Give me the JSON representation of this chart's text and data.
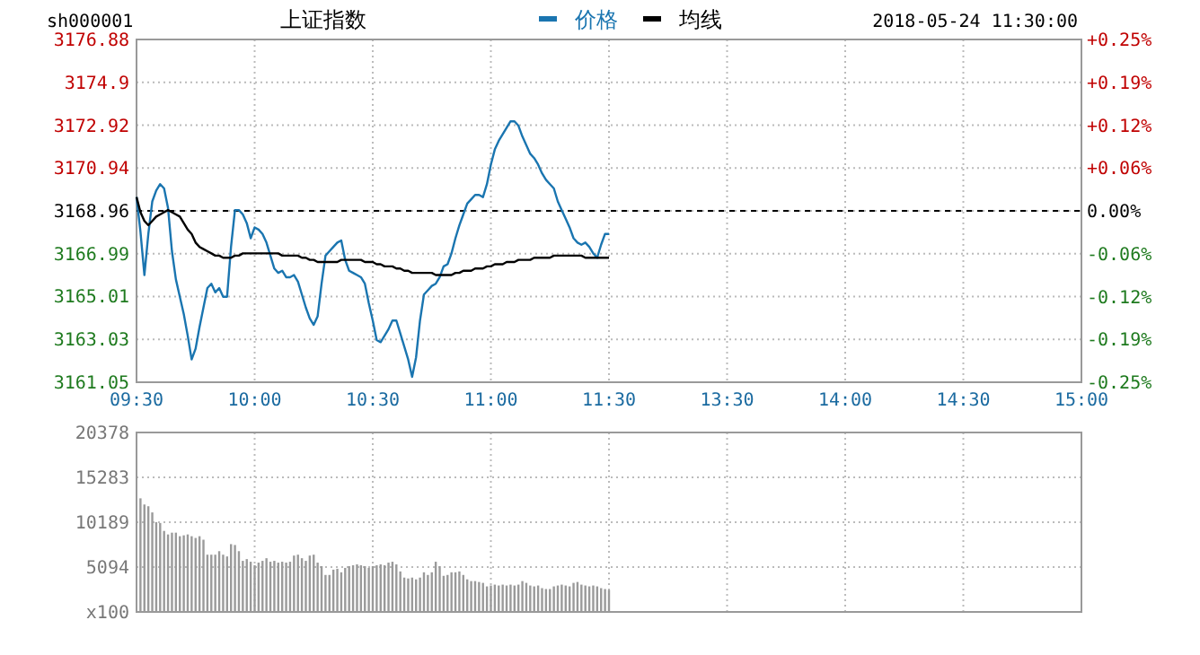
{
  "chart_data": [
    {
      "type": "line",
      "title": "上证指数",
      "subtitle": "sh000001",
      "annotations": [
        "2018-05-24 11:30:00"
      ],
      "legend": "top",
      "grid": true,
      "categories": [
        "09:30",
        null,
        null,
        null,
        null,
        null,
        null,
        null,
        null,
        null,
        null,
        null,
        null,
        null,
        null,
        null,
        null,
        null,
        null,
        null,
        null,
        null,
        null,
        null,
        null,
        null,
        null,
        null,
        null,
        null,
        "10:00",
        null,
        null,
        null,
        null,
        null,
        null,
        null,
        null,
        null,
        null,
        null,
        null,
        null,
        null,
        null,
        null,
        null,
        null,
        null,
        null,
        null,
        null,
        null,
        null,
        null,
        null,
        null,
        null,
        null,
        "10:30",
        null,
        null,
        null,
        null,
        null,
        null,
        null,
        null,
        null,
        null,
        null,
        null,
        null,
        null,
        null,
        null,
        null,
        null,
        null,
        null,
        null,
        null,
        null,
        null,
        null,
        null,
        null,
        null,
        null,
        "11:00",
        null,
        null,
        null,
        null,
        null,
        null,
        null,
        null,
        null,
        null,
        null,
        null,
        null,
        null,
        null,
        null,
        null,
        null,
        null,
        null,
        null,
        null,
        null,
        null,
        null,
        null,
        null,
        null,
        null,
        "11:30",
        null,
        null,
        null,
        null,
        null,
        null,
        null,
        null,
        null,
        null,
        null,
        null,
        null,
        null,
        null,
        null,
        null,
        null,
        null,
        null,
        null,
        null,
        null,
        null,
        null,
        null,
        null,
        null,
        null,
        "13:30",
        null,
        null,
        null,
        null,
        null,
        null,
        null,
        null,
        null,
        null,
        null,
        null,
        null,
        null,
        null,
        null,
        null,
        null,
        null,
        null,
        null,
        null,
        null,
        null,
        null,
        null,
        null,
        null,
        null,
        "14:00",
        null,
        null,
        null,
        null,
        null,
        null,
        null,
        null,
        null,
        null,
        null,
        null,
        null,
        null,
        null,
        null,
        null,
        null,
        null,
        null,
        null,
        null,
        null,
        null,
        null,
        null,
        null,
        null,
        null,
        "14:30",
        null,
        null,
        null,
        null,
        null,
        null,
        null,
        null,
        null,
        null,
        null,
        null,
        null,
        null,
        null,
        null,
        null,
        null,
        null,
        null,
        null,
        null,
        null,
        null,
        null,
        null,
        null,
        null,
        null,
        "15:00"
      ],
      "ylim": [
        3161.05,
        3176.88
      ],
      "yticks": [
        3161.05,
        3163.03,
        3165.01,
        3166.99,
        3168.96,
        3170.94,
        3172.92,
        3174.9,
        3176.88
      ],
      "y2lim": [
        -0.25,
        0.25
      ],
      "y2ticks": [
        {
          "value": -0.25,
          "label": "-0.25%"
        },
        {
          "value": -0.1875,
          "label": "-0.19%"
        },
        {
          "value": -0.125,
          "label": "-0.12%"
        },
        {
          "value": -0.0625,
          "label": "-0.06%"
        },
        {
          "value": 0,
          "label": "0.00%"
        },
        {
          "value": 0.0625,
          "label": "+0.06%"
        },
        {
          "value": 0.125,
          "label": "+0.12%"
        },
        {
          "value": 0.1875,
          "label": "+0.19%"
        },
        {
          "value": 0.25,
          "label": "+0.25%"
        }
      ],
      "ref_lines": [
        {
          "axis": "y2",
          "value": 0,
          "color": "#000000",
          "line_style": "dashed"
        }
      ],
      "series": [
        {
          "name": "价格",
          "color": "#1a75b0",
          "values": [
            3169.6,
            3168.0,
            3166.0,
            3167.9,
            3169.4,
            3169.9,
            3170.2,
            3170.0,
            3169.1,
            3167.1,
            3165.8,
            3165.0,
            3164.2,
            3163.2,
            3162.1,
            3162.6,
            3163.6,
            3164.5,
            3165.4,
            3165.6,
            3165.2,
            3165.4,
            3165.0,
            3165.0,
            3167.3,
            3169.0,
            3169.0,
            3168.8,
            3168.4,
            3167.7,
            3168.2,
            3168.1,
            3167.9,
            3167.5,
            3166.9,
            3166.3,
            3166.1,
            3166.2,
            3165.9,
            3165.9,
            3166.0,
            3165.7,
            3165.1,
            3164.5,
            3164.0,
            3163.7,
            3164.1,
            3165.6,
            3166.9,
            3167.1,
            3167.3,
            3167.5,
            3167.6,
            3166.7,
            3166.2,
            3166.1,
            3166.0,
            3165.9,
            3165.6,
            3164.7,
            3163.9,
            3163.0,
            3162.9,
            3163.2,
            3163.5,
            3163.9,
            3163.9,
            3163.3,
            3162.7,
            3162.1,
            3161.3,
            3162.2,
            3163.9,
            3165.1,
            3165.3,
            3165.5,
            3165.6,
            3165.9,
            3166.4,
            3166.5,
            3167.0,
            3167.7,
            3168.3,
            3168.8,
            3169.3,
            3169.5,
            3169.7,
            3169.7,
            3169.6,
            3170.2,
            3171.1,
            3171.8,
            3172.2,
            3172.5,
            3172.8,
            3173.1,
            3173.1,
            3172.9,
            3172.4,
            3172.0,
            3171.6,
            3171.4,
            3171.1,
            3170.7,
            3170.4,
            3170.2,
            3170.0,
            3169.4,
            3169.0,
            3168.6,
            3168.2,
            3167.7,
            3167.5,
            3167.4,
            3167.5,
            3167.3,
            3167.0,
            3166.8,
            3167.4,
            3167.9,
            3167.9,
            null,
            null,
            null,
            null,
            null,
            null,
            null,
            null,
            null,
            null,
            null,
            null,
            null,
            null,
            null,
            null,
            null,
            null,
            null,
            null,
            null,
            null,
            null,
            null,
            null,
            null,
            null,
            null,
            null,
            null,
            null,
            null,
            null,
            null,
            null,
            null,
            null,
            null,
            null,
            null,
            null,
            null,
            null,
            null,
            null,
            null,
            null,
            null,
            null,
            null,
            null,
            null,
            null,
            null,
            null,
            null,
            null,
            null,
            null,
            null,
            null,
            null,
            null,
            null,
            null,
            null,
            null,
            null,
            null,
            null,
            null,
            null,
            null,
            null,
            null,
            null,
            null,
            null,
            null,
            null,
            null,
            null,
            null,
            null,
            null,
            null,
            null,
            null,
            null,
            null,
            null,
            null,
            null,
            null,
            null,
            null,
            null,
            null,
            null,
            null,
            null,
            null,
            null,
            null,
            null,
            null,
            null,
            null,
            null,
            null,
            null,
            null,
            null,
            null,
            null,
            null,
            null,
            null,
            null,
            null
          ]
        },
        {
          "name": "均线",
          "color": "#000000",
          "values": [
            3169.6,
            3168.9,
            3168.5,
            3168.3,
            3168.5,
            3168.7,
            3168.8,
            3168.9,
            3169.0,
            3168.9,
            3168.8,
            3168.7,
            3168.4,
            3168.1,
            3167.9,
            3167.5,
            3167.3,
            3167.2,
            3167.1,
            3167.0,
            3166.9,
            3166.9,
            3166.8,
            3166.8,
            3166.8,
            3166.9,
            3166.9,
            3167.0,
            3167.0,
            3167.0,
            3167.0,
            3167.0,
            3167.0,
            3167.0,
            3167.0,
            3167.0,
            3167.0,
            3166.9,
            3166.9,
            3166.9,
            3166.9,
            3166.9,
            3166.8,
            3166.8,
            3166.7,
            3166.7,
            3166.6,
            3166.6,
            3166.6,
            3166.6,
            3166.6,
            3166.6,
            3166.7,
            3166.7,
            3166.7,
            3166.7,
            3166.7,
            3166.7,
            3166.6,
            3166.6,
            3166.6,
            3166.5,
            3166.5,
            3166.4,
            3166.4,
            3166.4,
            3166.3,
            3166.3,
            3166.2,
            3166.2,
            3166.1,
            3166.1,
            3166.1,
            3166.1,
            3166.1,
            3166.1,
            3166.0,
            3166.0,
            3166.0,
            3166.0,
            3166.0,
            3166.1,
            3166.1,
            3166.2,
            3166.2,
            3166.2,
            3166.3,
            3166.3,
            3166.3,
            3166.4,
            3166.4,
            3166.5,
            3166.5,
            3166.5,
            3166.6,
            3166.6,
            3166.6,
            3166.7,
            3166.7,
            3166.7,
            3166.7,
            3166.8,
            3166.8,
            3166.8,
            3166.8,
            3166.8,
            3166.9,
            3166.9,
            3166.9,
            3166.9,
            3166.9,
            3166.9,
            3166.9,
            3166.9,
            3166.8,
            3166.8,
            3166.8,
            3166.8,
            3166.8,
            3166.8,
            3166.8,
            null,
            null,
            null,
            null,
            null,
            null,
            null,
            null,
            null,
            null,
            null,
            null,
            null,
            null,
            null,
            null,
            null,
            null,
            null,
            null,
            null,
            null,
            null,
            null,
            null,
            null,
            null,
            null,
            null,
            null,
            null,
            null,
            null,
            null,
            null,
            null,
            null,
            null,
            null,
            null,
            null,
            null,
            null,
            null,
            null,
            null,
            null,
            null,
            null,
            null,
            null,
            null,
            null,
            null,
            null,
            null,
            null,
            null,
            null,
            null,
            null,
            null,
            null,
            null,
            null,
            null,
            null,
            null,
            null,
            null,
            null,
            null,
            null,
            null,
            null,
            null,
            null,
            null,
            null,
            null,
            null,
            null,
            null,
            null,
            null,
            null,
            null,
            null,
            null,
            null,
            null,
            null,
            null,
            null,
            null,
            null,
            null,
            null,
            null,
            null,
            null,
            null,
            null,
            null,
            null,
            null,
            null,
            null,
            null,
            null,
            null,
            null,
            null,
            null,
            null,
            null,
            null,
            null,
            null,
            null
          ]
        }
      ]
    },
    {
      "type": "bar",
      "grid": true,
      "tick_labels": "y",
      "color": "#9a9a9a",
      "categories": [
        null,
        null,
        null,
        null,
        null,
        null,
        null,
        null,
        null,
        null,
        null,
        null,
        null,
        null,
        null,
        null,
        null,
        null,
        null,
        null,
        null,
        null,
        null,
        null,
        null,
        null,
        null,
        null,
        null,
        null,
        null,
        null,
        null,
        null,
        null,
        null,
        null,
        null,
        null,
        null,
        null,
        null,
        null,
        null,
        null,
        null,
        null,
        null,
        null,
        null,
        null,
        null,
        null,
        null,
        null,
        null,
        null,
        null,
        null,
        null,
        null,
        null,
        null,
        null,
        null,
        null,
        null,
        null,
        null,
        null,
        null,
        null,
        null,
        null,
        null,
        null,
        null,
        null,
        null,
        null,
        null,
        null,
        null,
        null,
        null,
        null,
        null,
        null,
        null,
        null,
        null,
        null,
        null,
        null,
        null,
        null,
        null,
        null,
        null,
        null,
        null,
        null,
        null,
        null,
        null,
        null,
        null,
        null,
        null,
        null,
        null,
        null,
        null,
        null,
        null,
        null,
        null,
        null,
        null,
        null,
        null,
        null,
        null,
        null,
        null,
        null,
        null,
        null,
        null,
        null,
        null,
        null,
        null,
        null,
        null,
        null,
        null,
        null,
        null,
        null,
        null,
        null,
        null,
        null,
        null,
        null,
        null,
        null,
        null,
        null,
        null,
        null,
        null,
        null,
        null,
        null,
        null,
        null,
        null,
        null,
        null,
        null,
        null,
        null,
        null,
        null,
        null,
        null,
        null,
        null,
        null,
        null,
        null,
        null,
        null,
        null,
        null,
        null,
        null,
        null,
        null,
        null,
        null,
        null,
        null,
        null,
        null,
        null,
        null,
        null,
        null,
        null,
        null,
        null,
        null,
        null,
        null,
        null,
        null,
        null,
        null,
        null,
        null,
        null,
        null,
        null,
        null,
        null,
        null,
        null,
        null,
        null,
        null,
        null,
        null,
        null,
        null,
        null,
        null,
        null,
        null,
        null,
        null,
        null,
        null,
        null,
        null,
        null,
        null,
        null,
        null,
        null,
        null,
        null,
        null,
        null,
        null,
        null,
        null,
        null,
        null
      ],
      "ylim": [
        0,
        20378
      ],
      "yticks": [
        {
          "value": 0,
          "label": "x100"
        },
        5094,
        10189,
        15283,
        20378
      ],
      "values": [
        null,
        12900,
        12200,
        12000,
        11300,
        10200,
        10100,
        9200,
        8800,
        9000,
        9000,
        8600,
        8700,
        8800,
        8600,
        8400,
        8600,
        8200,
        6500,
        6500,
        6500,
        6900,
        6500,
        6300,
        7700,
        7600,
        6900,
        5800,
        6000,
        5700,
        5300,
        5600,
        5800,
        6100,
        5700,
        5800,
        5600,
        5700,
        5600,
        5700,
        6400,
        6500,
        6100,
        5800,
        6400,
        6500,
        5600,
        5200,
        4200,
        4200,
        4800,
        4900,
        4500,
        5000,
        5200,
        5300,
        5400,
        5300,
        5200,
        5000,
        5200,
        5300,
        5400,
        5300,
        5600,
        5700,
        5400,
        4600,
        3900,
        3800,
        3900,
        3700,
        3900,
        4500,
        4200,
        4500,
        5700,
        5200,
        4100,
        4200,
        4500,
        4500,
        4600,
        4200,
        3700,
        3500,
        3500,
        3400,
        3300,
        2900,
        3000,
        3100,
        3000,
        3100,
        3000,
        3100,
        3000,
        3100,
        3500,
        3300,
        3000,
        2900,
        3000,
        2700,
        2600,
        2600,
        2900,
        3000,
        3100,
        3000,
        2900,
        3300,
        3400,
        3100,
        3000,
        2900,
        3000,
        2900,
        2700,
        2600,
        2500,
        null,
        null,
        null,
        null,
        null,
        null,
        null,
        null,
        null,
        null,
        null,
        null,
        null,
        null,
        null,
        null,
        null,
        null,
        null,
        null,
        null,
        null,
        null,
        null,
        null,
        null,
        null,
        null,
        null,
        null,
        null,
        null,
        null,
        null,
        null,
        null,
        null,
        null,
        null,
        null,
        null,
        null,
        null,
        null,
        null,
        null,
        null,
        null,
        null,
        null,
        null,
        null,
        null,
        null,
        null,
        null,
        null,
        null,
        null,
        null,
        null,
        null,
        null,
        null,
        null,
        null,
        null,
        null,
        null,
        null,
        null,
        null,
        null,
        null,
        null,
        null,
        null,
        null,
        null,
        null,
        null,
        null,
        null,
        null,
        null,
        null,
        null,
        null,
        null,
        null,
        null,
        null,
        null,
        null,
        null,
        null,
        null,
        null,
        null,
        null,
        null,
        null,
        null,
        null,
        null,
        null,
        null,
        null,
        null,
        null,
        null,
        null,
        null,
        null,
        null,
        null,
        null,
        null,
        null,
        null
      ]
    }
  ]
}
